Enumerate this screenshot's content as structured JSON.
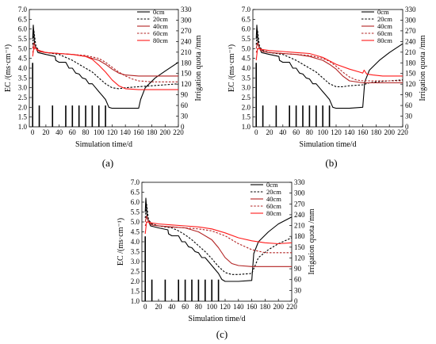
{
  "figure": {
    "panel_labels": [
      "(a)",
      "(b)",
      "(c)"
    ]
  },
  "colors": {
    "depth_0cm": "#000000",
    "depth_20cm": "#000000",
    "depth_40cm": "#b22222",
    "depth_60cm": "#b22222",
    "depth_80cm": "#ff1a1a",
    "irrigation_bars": "#000000"
  },
  "chart_data": [
    {
      "panel": "(a)",
      "type": "line",
      "xlabel": "Simulation time/d",
      "ylabel": "EC /(ms·cm⁻¹)",
      "y2label": "Irrigation quota /mm",
      "xlim": [
        -5,
        220
      ],
      "ylim": [
        1.0,
        7.0
      ],
      "y2lim": [
        0,
        330
      ],
      "xticks": [
        0,
        20,
        40,
        60,
        80,
        100,
        120,
        140,
        160,
        180,
        200,
        220
      ],
      "yticks": [
        "1.0",
        "1.5",
        "2.0",
        "2.5",
        "3.0",
        "3.5",
        "4.0",
        "4.5",
        "5.0",
        "5.5",
        "6.0",
        "6.5",
        "7.0"
      ],
      "y2ticks": [
        0,
        30,
        60,
        90,
        120,
        150,
        180,
        210,
        240,
        270,
        300,
        330
      ],
      "legend": {
        "position": "top-right",
        "entries": [
          "0cm",
          "20cm",
          "40cm",
          "60cm",
          "80cm"
        ]
      },
      "irrigation": {
        "days": [
          0,
          10,
          30,
          50,
          60,
          70,
          80,
          90,
          100,
          110
        ],
        "quota_mm": [
          180,
          60,
          60,
          60,
          60,
          60,
          60,
          60,
          60,
          60
        ]
      },
      "series": [
        {
          "name": "0cm",
          "style": "solid",
          "colorKey": "depth_0cm",
          "x": [
            0,
            1,
            3,
            8,
            20,
            34,
            35,
            40,
            45,
            50,
            55,
            60,
            65,
            70,
            75,
            80,
            85,
            90,
            95,
            100,
            105,
            110,
            115,
            120,
            140,
            160,
            163,
            170,
            185,
            200,
            220
          ],
          "y": [
            5.5,
            6.2,
            5.2,
            4.8,
            4.7,
            4.6,
            4.4,
            4.3,
            4.3,
            4.3,
            4.0,
            4.0,
            3.75,
            3.7,
            3.5,
            3.45,
            3.2,
            3.2,
            3.0,
            2.8,
            2.6,
            2.4,
            2.0,
            1.95,
            1.95,
            1.95,
            2.4,
            3.0,
            3.5,
            3.85,
            4.3
          ]
        },
        {
          "name": "20cm",
          "style": "dashed",
          "colorKey": "depth_20cm",
          "x": [
            0,
            2,
            5,
            10,
            20,
            40,
            50,
            60,
            70,
            80,
            90,
            100,
            110,
            120,
            130,
            140,
            160,
            180,
            200,
            220
          ],
          "y": [
            5.2,
            5.9,
            5.1,
            4.9,
            4.8,
            4.7,
            4.55,
            4.4,
            4.2,
            4.0,
            3.8,
            3.5,
            3.2,
            3.0,
            2.95,
            3.0,
            3.05,
            3.1,
            3.15,
            3.2
          ]
        },
        {
          "name": "40cm",
          "style": "solid",
          "colorKey": "depth_40cm",
          "x": [
            0,
            2,
            5,
            10,
            20,
            40,
            60,
            80,
            100,
            110,
            120,
            130,
            140,
            160,
            180,
            200,
            220
          ],
          "y": [
            5.0,
            5.3,
            5.0,
            4.85,
            4.8,
            4.75,
            4.7,
            4.6,
            4.4,
            4.2,
            3.95,
            3.75,
            3.65,
            3.6,
            3.6,
            3.6,
            3.6
          ]
        },
        {
          "name": "60cm",
          "style": "dashed",
          "colorKey": "depth_60cm",
          "x": [
            0,
            2,
            5,
            10,
            20,
            40,
            60,
            80,
            100,
            110,
            120,
            130,
            140,
            150,
            160,
            180,
            200,
            220
          ],
          "y": [
            4.8,
            5.0,
            4.95,
            4.85,
            4.8,
            4.75,
            4.7,
            4.65,
            4.5,
            4.3,
            4.05,
            3.8,
            3.6,
            3.45,
            3.35,
            3.3,
            3.3,
            3.3
          ]
        },
        {
          "name": "80cm",
          "style": "solid",
          "colorKey": "depth_80cm",
          "x": [
            0,
            2,
            5,
            10,
            20,
            40,
            60,
            80,
            90,
            100,
            110,
            120,
            130,
            140,
            160,
            180,
            200,
            220
          ],
          "y": [
            4.6,
            5.1,
            5.0,
            4.9,
            4.8,
            4.75,
            4.7,
            4.6,
            4.45,
            4.15,
            3.8,
            3.4,
            3.1,
            2.95,
            2.9,
            2.9,
            2.9,
            2.9
          ]
        }
      ]
    },
    {
      "panel": "(b)",
      "type": "line",
      "xlabel": "Simulation time/d",
      "ylabel": "EC /(ms·cm⁻¹)",
      "y2label": "Irrigation quota /mm",
      "xlim": [
        -5,
        220
      ],
      "ylim": [
        1.0,
        7.0
      ],
      "y2lim": [
        0,
        330
      ],
      "xticks": [
        0,
        20,
        40,
        60,
        80,
        100,
        120,
        140,
        160,
        180,
        200,
        220
      ],
      "yticks": [
        "1.0",
        "1.5",
        "2.0",
        "2.5",
        "3.0",
        "3.5",
        "4.0",
        "4.5",
        "5.0",
        "5.5",
        "6.0",
        "6.5",
        "7.0"
      ],
      "y2ticks": [
        0,
        30,
        60,
        90,
        120,
        150,
        180,
        210,
        240,
        270,
        300,
        330
      ],
      "legend": {
        "position": "top-right",
        "entries": [
          "0cm",
          "20cm",
          "40cm",
          "60cm",
          "80cm"
        ]
      },
      "irrigation": {
        "days": [
          0,
          10,
          30,
          50,
          60,
          70,
          80,
          90,
          100,
          110
        ],
        "quota_mm": [
          180,
          60,
          60,
          60,
          60,
          60,
          60,
          60,
          60,
          60
        ]
      },
      "series": [
        {
          "name": "0cm",
          "style": "solid",
          "colorKey": "depth_0cm",
          "x": [
            0,
            1,
            3,
            8,
            20,
            34,
            35,
            40,
            45,
            50,
            55,
            60,
            65,
            70,
            75,
            80,
            85,
            90,
            95,
            100,
            105,
            110,
            115,
            120,
            140,
            160,
            163,
            170,
            185,
            200,
            220
          ],
          "y": [
            5.5,
            6.2,
            5.2,
            4.8,
            4.7,
            4.6,
            4.4,
            4.3,
            4.3,
            4.3,
            4.0,
            4.0,
            3.75,
            3.7,
            3.5,
            3.45,
            3.2,
            3.2,
            3.0,
            2.8,
            2.6,
            2.4,
            2.0,
            1.95,
            1.95,
            2.0,
            3.3,
            3.9,
            4.4,
            4.8,
            5.25
          ]
        },
        {
          "name": "20cm",
          "style": "dashed",
          "colorKey": "depth_20cm",
          "x": [
            0,
            2,
            5,
            10,
            20,
            40,
            50,
            60,
            70,
            80,
            90,
            100,
            110,
            120,
            130,
            140,
            160,
            170,
            180,
            200,
            220
          ],
          "y": [
            5.2,
            5.9,
            5.1,
            4.9,
            4.8,
            4.7,
            4.55,
            4.4,
            4.2,
            4.0,
            3.8,
            3.5,
            3.2,
            3.05,
            3.05,
            3.1,
            3.15,
            3.25,
            3.3,
            3.35,
            3.4
          ]
        },
        {
          "name": "40cm",
          "style": "solid",
          "colorKey": "depth_40cm",
          "x": [
            0,
            2,
            5,
            10,
            20,
            40,
            60,
            80,
            100,
            110,
            120,
            130,
            140,
            160,
            180,
            200,
            220
          ],
          "y": [
            5.0,
            5.3,
            5.0,
            4.85,
            4.8,
            4.75,
            4.7,
            4.6,
            4.4,
            4.2,
            3.95,
            3.6,
            3.35,
            3.25,
            3.25,
            3.25,
            3.25
          ]
        },
        {
          "name": "60cm",
          "style": "dashed",
          "colorKey": "depth_60cm",
          "x": [
            0,
            2,
            5,
            10,
            20,
            40,
            60,
            80,
            100,
            110,
            120,
            130,
            140,
            150,
            160,
            180,
            200,
            220
          ],
          "y": [
            4.8,
            5.0,
            4.95,
            4.85,
            4.8,
            4.75,
            4.7,
            4.65,
            4.5,
            4.35,
            4.1,
            3.8,
            3.55,
            3.4,
            3.35,
            3.35,
            3.35,
            3.35
          ]
        },
        {
          "name": "80cm",
          "style": "solid",
          "colorKey": "depth_80cm",
          "x": [
            0,
            2,
            5,
            10,
            20,
            40,
            60,
            80,
            100,
            120,
            140,
            155,
            160,
            162,
            166,
            175,
            190,
            200,
            220
          ],
          "y": [
            4.4,
            5.0,
            5.0,
            4.95,
            4.9,
            4.85,
            4.8,
            4.75,
            4.55,
            4.2,
            3.95,
            3.8,
            3.75,
            3.9,
            3.7,
            3.65,
            3.6,
            3.6,
            3.6
          ]
        }
      ]
    },
    {
      "panel": "(c)",
      "type": "line",
      "xlabel": "Simulation time/d",
      "ylabel": "EC /(ms·cm⁻¹)",
      "y2label": "Irrigation quota /mm",
      "xlim": [
        -5,
        220
      ],
      "ylim": [
        1.0,
        7.0
      ],
      "y2lim": [
        0,
        330
      ],
      "xticks": [
        0,
        20,
        40,
        60,
        80,
        100,
        120,
        140,
        160,
        180,
        200,
        220
      ],
      "yticks": [
        "1.0",
        "1.5",
        "2.0",
        "2.5",
        "3.0",
        "3.5",
        "4.0",
        "4.5",
        "5.0",
        "5.5",
        "6.0",
        "6.5",
        "7.0"
      ],
      "y2ticks": [
        0,
        30,
        60,
        90,
        120,
        150,
        180,
        210,
        240,
        270,
        300,
        330
      ],
      "legend": {
        "position": "top-right",
        "entries": [
          "0cm",
          "20cm",
          "40cm",
          "60cm",
          "80cm"
        ]
      },
      "irrigation": {
        "days": [
          0,
          10,
          30,
          50,
          60,
          70,
          80,
          90,
          100,
          110
        ],
        "quota_mm": [
          180,
          60,
          60,
          60,
          60,
          60,
          60,
          60,
          60,
          60
        ]
      },
      "series": [
        {
          "name": "0cm",
          "style": "solid",
          "colorKey": "depth_0cm",
          "x": [
            0,
            1,
            3,
            8,
            20,
            34,
            35,
            40,
            45,
            50,
            55,
            60,
            65,
            70,
            75,
            80,
            85,
            90,
            95,
            100,
            105,
            110,
            115,
            120,
            140,
            160,
            163,
            170,
            185,
            200,
            220
          ],
          "y": [
            5.5,
            6.2,
            5.2,
            4.8,
            4.7,
            4.6,
            4.4,
            4.3,
            4.3,
            4.3,
            4.0,
            4.0,
            3.75,
            3.7,
            3.5,
            3.45,
            3.2,
            3.2,
            3.0,
            2.8,
            2.6,
            2.4,
            2.1,
            2.0,
            2.0,
            2.05,
            3.4,
            4.0,
            4.5,
            4.9,
            5.25
          ]
        },
        {
          "name": "20cm",
          "style": "dashed",
          "colorKey": "depth_20cm",
          "x": [
            0,
            2,
            5,
            10,
            20,
            40,
            50,
            60,
            70,
            80,
            90,
            100,
            110,
            120,
            130,
            140,
            160,
            170,
            185,
            200,
            220
          ],
          "y": [
            5.2,
            5.9,
            5.1,
            4.9,
            4.8,
            4.7,
            4.55,
            4.35,
            4.1,
            3.8,
            3.5,
            3.15,
            2.75,
            2.45,
            2.35,
            2.35,
            2.4,
            3.2,
            3.6,
            3.9,
            4.2
          ]
        },
        {
          "name": "40cm",
          "style": "solid",
          "colorKey": "depth_40cm",
          "x": [
            0,
            2,
            5,
            10,
            20,
            40,
            60,
            80,
            100,
            110,
            120,
            130,
            140,
            160,
            180,
            200,
            220
          ],
          "y": [
            5.0,
            5.3,
            5.0,
            4.85,
            4.8,
            4.75,
            4.7,
            4.5,
            4.1,
            3.7,
            3.2,
            2.9,
            2.8,
            2.75,
            2.75,
            2.75,
            2.75
          ]
        },
        {
          "name": "60cm",
          "style": "dashed",
          "colorKey": "depth_60cm",
          "x": [
            0,
            2,
            5,
            10,
            20,
            40,
            60,
            80,
            100,
            120,
            140,
            160,
            180,
            200,
            220
          ],
          "y": [
            4.8,
            5.0,
            4.95,
            4.85,
            4.8,
            4.75,
            4.7,
            4.65,
            4.55,
            4.3,
            3.9,
            3.6,
            3.45,
            3.45,
            3.45
          ]
        },
        {
          "name": "80cm",
          "style": "solid",
          "colorKey": "depth_80cm",
          "x": [
            0,
            2,
            5,
            10,
            20,
            40,
            60,
            80,
            100,
            120,
            140,
            160,
            180,
            200,
            220
          ],
          "y": [
            4.4,
            5.0,
            5.0,
            4.95,
            4.9,
            4.85,
            4.8,
            4.75,
            4.65,
            4.45,
            4.2,
            4.05,
            3.95,
            3.9,
            3.95
          ]
        }
      ]
    }
  ]
}
